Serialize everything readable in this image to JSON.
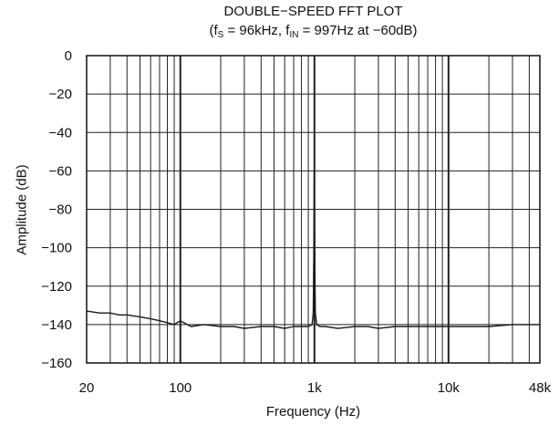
{
  "title": {
    "line1": "DOUBLE−SPEED FFT PLOT",
    "l2_open": "(f",
    "l2_s": "S",
    "l2_mid": " = 96kHz, f",
    "l2_in": "IN",
    "l2_close": " = 997Hz at −60dB)"
  },
  "chart_data": {
    "type": "line",
    "xlabel": "Frequency (Hz)",
    "ylabel": "Amplitude (dB)",
    "x_scale": "log",
    "xlim": [
      20,
      48000
    ],
    "ylim": [
      -160,
      0
    ],
    "grid": true,
    "x_ticks": [
      {
        "value": 20,
        "label": "20"
      },
      {
        "value": 100,
        "label": "100"
      },
      {
        "value": 1000,
        "label": "1k"
      },
      {
        "value": 10000,
        "label": "10k"
      },
      {
        "value": 48000,
        "label": "48k"
      }
    ],
    "y_ticks": [
      {
        "value": 0,
        "label": "0"
      },
      {
        "value": -20,
        "label": "−20"
      },
      {
        "value": -40,
        "label": "−40"
      },
      {
        "value": -60,
        "label": "−60"
      },
      {
        "value": -80,
        "label": "−80"
      },
      {
        "value": -100,
        "label": "−100"
      },
      {
        "value": -120,
        "label": "−120"
      },
      {
        "value": -140,
        "label": "−140"
      },
      {
        "value": -160,
        "label": "−160"
      }
    ],
    "series": [
      {
        "color": "#1a1a1a",
        "x": [
          20,
          25,
          30,
          35,
          40,
          50,
          60,
          70,
          80,
          90,
          100,
          120,
          150,
          200,
          250,
          300,
          400,
          500,
          600,
          700,
          800,
          900,
          960,
          980,
          990,
          997,
          1004,
          1015,
          1040,
          1100,
          1200,
          1500,
          2000,
          2500,
          3000,
          4000,
          5000,
          7000,
          10000,
          15000,
          20000,
          30000,
          40000,
          48000
        ],
        "y": [
          -133,
          -134,
          -134,
          -135,
          -135,
          -136,
          -137,
          -138,
          -139,
          -140,
          -138,
          -141,
          -140,
          -141,
          -141,
          -142,
          -141,
          -141,
          -142,
          -141,
          -141,
          -141,
          -140,
          -134,
          -100,
          -60,
          -100,
          -134,
          -140,
          -141,
          -141,
          -142,
          -141,
          -141,
          -142,
          -141,
          -141,
          -141,
          -141,
          -141,
          -141,
          -140,
          -140,
          -140
        ]
      }
    ]
  }
}
